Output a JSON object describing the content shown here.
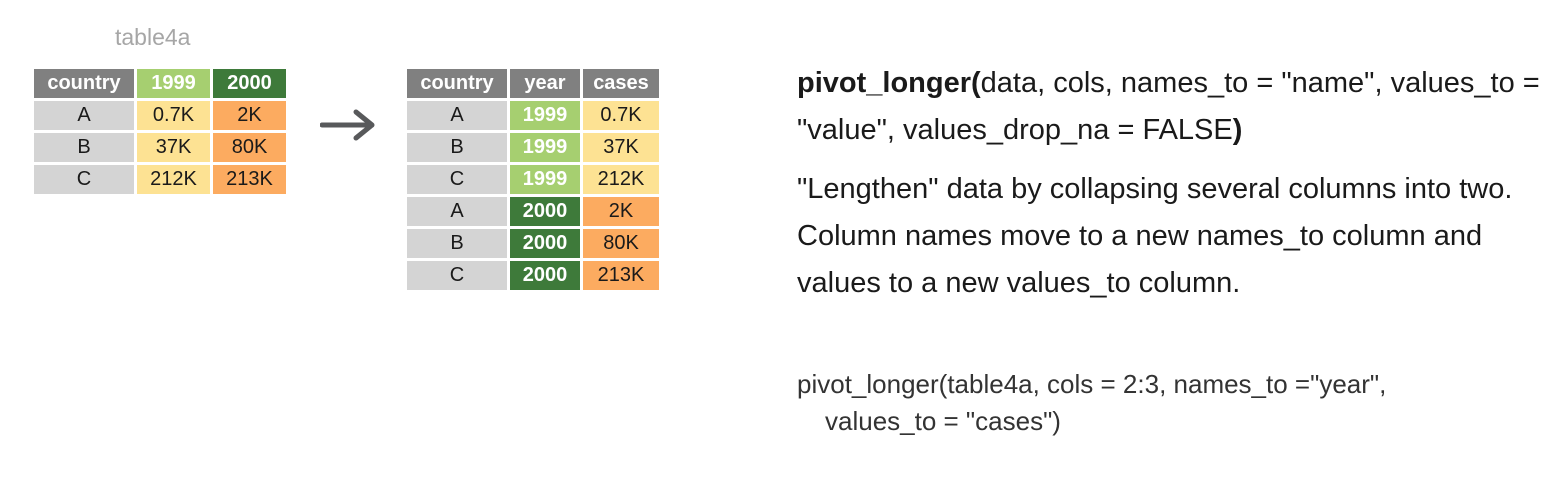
{
  "wide_table": {
    "caption": "table4a",
    "headers": [
      "country",
      "1999",
      "2000"
    ],
    "rows": [
      [
        "A",
        "0.7K",
        "2K"
      ],
      [
        "B",
        "37K",
        "80K"
      ],
      [
        "C",
        "212K",
        "213K"
      ]
    ]
  },
  "long_table": {
    "headers": [
      "country",
      "year",
      "cases"
    ],
    "rows": [
      [
        "A",
        "1999",
        "0.7K"
      ],
      [
        "B",
        "1999",
        "37K"
      ],
      [
        "C",
        "1999",
        "212K"
      ],
      [
        "A",
        "2000",
        "2K"
      ],
      [
        "B",
        "2000",
        "80K"
      ],
      [
        "C",
        "2000",
        "213K"
      ]
    ]
  },
  "signature": {
    "function": "pivot_longer(",
    "args": "data, cols, names_to = \"name\", values_to = \"value\", values_drop_na = FALSE",
    "close": ")"
  },
  "description": "\"Lengthen\" data by collapsing several columns into two. Column names move to a new names_to column and values to a new values_to column.",
  "example": {
    "line1": "pivot_longer(table4a, cols = 2:3, names_to =\"year\",",
    "line2": "values_to = \"cases\")"
  },
  "colors": {
    "header_gray": "#808080",
    "country_cell": "#d4d4d4",
    "year_1999": "#a6cf70",
    "year_2000": "#3e7a3a",
    "value_1999": "#fde293",
    "value_2000": "#fcab60",
    "caption_gray": "#a6a6a6",
    "arrow_gray": "#58595b"
  },
  "icons": {
    "arrow": "right-arrow-icon"
  }
}
